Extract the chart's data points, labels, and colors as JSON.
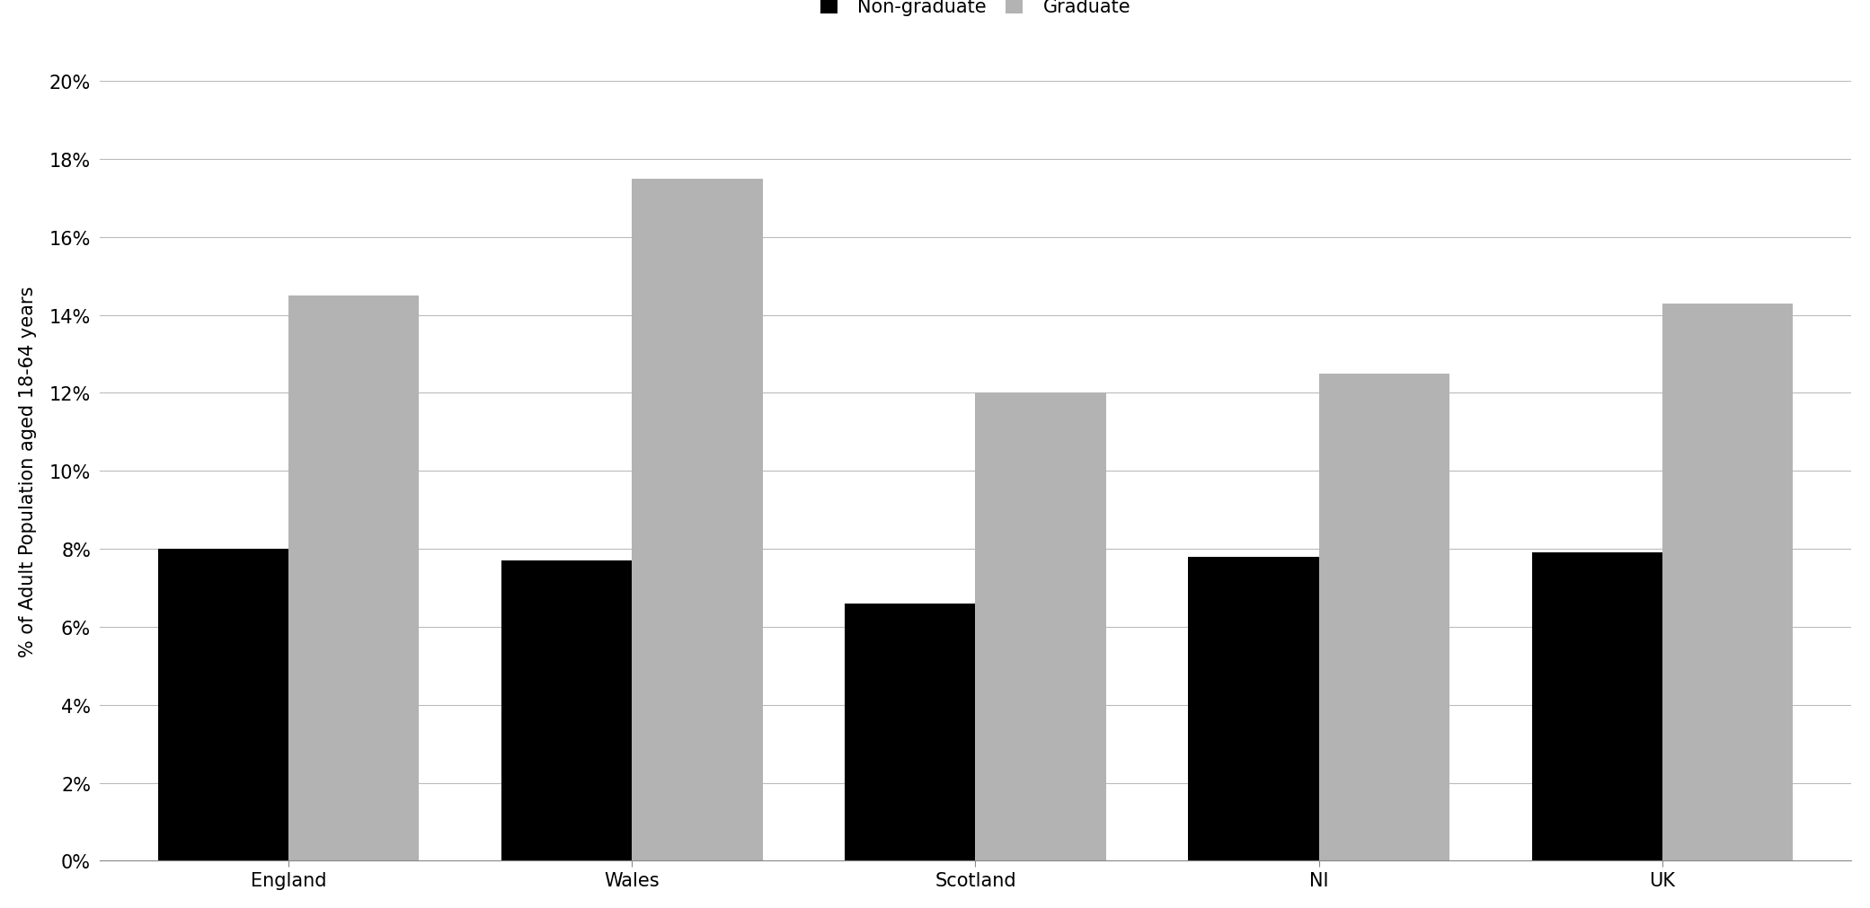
{
  "categories": [
    "England",
    "Wales",
    "Scotland",
    "NI",
    "UK"
  ],
  "non_graduate": [
    0.08,
    0.077,
    0.066,
    0.078,
    0.079
  ],
  "graduate": [
    0.145,
    0.175,
    0.12,
    0.125,
    0.143
  ],
  "non_graduate_color": "#000000",
  "graduate_color": "#b3b3b3",
  "ylabel": "% of Adult Population aged 18-64 years",
  "ylim": [
    0,
    0.2
  ],
  "yticks": [
    0.0,
    0.02,
    0.04,
    0.06,
    0.08,
    0.1,
    0.12,
    0.14,
    0.16,
    0.18,
    0.2
  ],
  "legend_labels": [
    "Non-graduate",
    "Graduate"
  ],
  "bar_width": 0.38,
  "background_color": "#ffffff",
  "grid_color": "#bbbbbb",
  "label_fontsize": 15,
  "tick_fontsize": 15,
  "legend_fontsize": 15
}
